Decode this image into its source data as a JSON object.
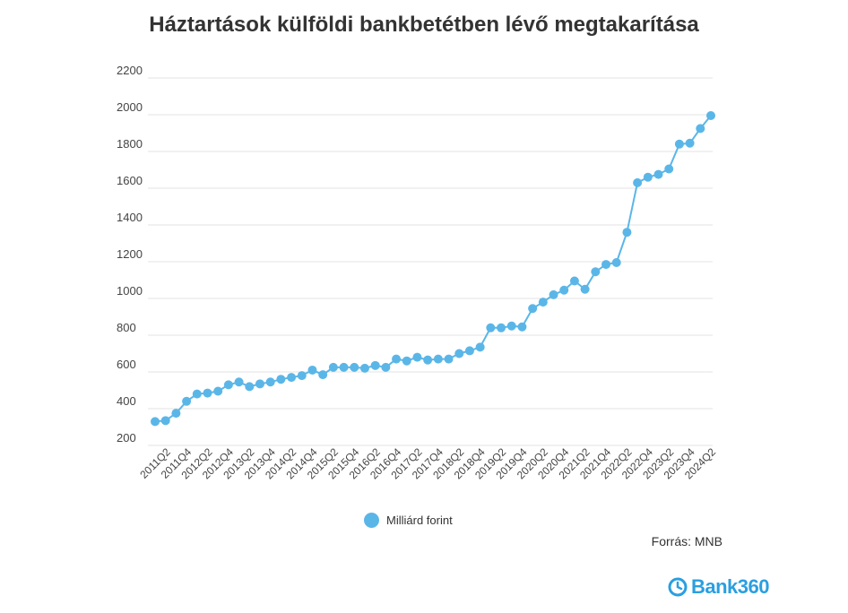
{
  "chart_data": {
    "type": "line",
    "title": "Háztartások külföldi bankbetétben lévő megtakarítása",
    "xlabel": "",
    "ylabel": "",
    "ylim": [
      200,
      2200
    ],
    "yticks": [
      200,
      400,
      600,
      800,
      1000,
      1200,
      1400,
      1600,
      1800,
      2000,
      2200
    ],
    "grid": true,
    "legend_position": "bottom",
    "x": [
      "2011Q1",
      "2011Q2",
      "2011Q3",
      "2011Q4",
      "2012Q1",
      "2012Q2",
      "2012Q3",
      "2012Q4",
      "2013Q1",
      "2013Q2",
      "2013Q3",
      "2013Q4",
      "2014Q1",
      "2014Q2",
      "2014Q3",
      "2014Q4",
      "2015Q1",
      "2015Q2",
      "2015Q3",
      "2015Q4",
      "2016Q1",
      "2016Q2",
      "2016Q3",
      "2016Q4",
      "2017Q1",
      "2017Q2",
      "2017Q3",
      "2017Q4",
      "2018Q1",
      "2018Q2",
      "2018Q3",
      "2018Q4",
      "2019Q1",
      "2019Q2",
      "2019Q3",
      "2019Q4",
      "2020Q1",
      "2020Q2",
      "2020Q3",
      "2020Q4",
      "2021Q1",
      "2021Q2",
      "2021Q3",
      "2021Q4",
      "2022Q1",
      "2022Q2",
      "2022Q3",
      "2022Q4",
      "2023Q1",
      "2023Q2",
      "2023Q3",
      "2023Q4",
      "2024Q1",
      "2024Q2"
    ],
    "x_tick_labels": [
      "2011Q2",
      "2011Q4",
      "2012Q2",
      "2012Q4",
      "2013Q2",
      "2013Q4",
      "2014Q2",
      "2014Q4",
      "2015Q2",
      "2015Q4",
      "2016Q2",
      "2016Q4",
      "2017Q2",
      "2017Q4",
      "2018Q2",
      "2018Q4",
      "2019Q2",
      "2019Q4",
      "2020Q2",
      "2020Q4",
      "2021Q2",
      "2021Q4",
      "2022Q2",
      "2022Q4",
      "2023Q2",
      "2023Q4",
      "2024Q2"
    ],
    "series": [
      {
        "name": "Milliárd forint",
        "color": "#5bb6e8",
        "values": [
          330,
          335,
          375,
          440,
          480,
          485,
          495,
          530,
          545,
          520,
          535,
          545,
          560,
          570,
          580,
          610,
          585,
          625,
          625,
          625,
          620,
          635,
          625,
          670,
          660,
          680,
          665,
          670,
          670,
          700,
          715,
          735,
          840,
          840,
          850,
          845,
          945,
          980,
          1020,
          1045,
          1095,
          1050,
          1145,
          1185,
          1195,
          1360,
          1630,
          1660,
          1675,
          1705,
          1840,
          1845,
          1925,
          1995
        ]
      }
    ]
  },
  "legend": {
    "label": "Milliárd forint"
  },
  "source": "Forrás: MNB",
  "logo": {
    "text": "Bank360"
  }
}
